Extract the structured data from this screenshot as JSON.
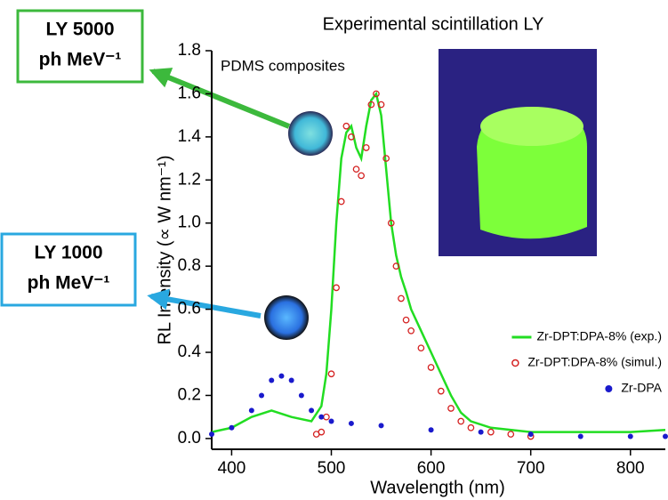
{
  "chart_data": {
    "type": "line",
    "title": "Experimental scintillation LY",
    "xlabel": "Wavelength (nm)",
    "ylabel": "RL Intensity (∝ W nm⁻¹)",
    "inset_label": "PDMS composites",
    "annotations": [
      {
        "lines": [
          "LY 5000",
          "ph MeV⁻¹"
        ],
        "color": "#3cb93c"
      },
      {
        "lines": [
          "LY 1000",
          "ph MeV⁻¹"
        ],
        "color": "#29a8e0"
      }
    ],
    "xlim": [
      380,
      835
    ],
    "ylim": [
      -0.05,
      1.8
    ],
    "xticks": [
      400,
      500,
      600,
      700,
      800
    ],
    "yticks": [
      {
        "value": 0,
        "label": "0.0"
      },
      {
        "value": 0.2,
        "label": "0.2"
      },
      {
        "value": 0.4,
        "label": "0.4"
      },
      {
        "value": 0.6,
        "label": "0.6"
      },
      {
        "value": 0.8,
        "label": "0.8"
      },
      {
        "value": 1.0,
        "label": "1.0"
      },
      {
        "value": 1.2,
        "label": "1.2"
      },
      {
        "value": 1.4,
        "label": "1.4"
      },
      {
        "value": 1.6,
        "label": "1.6"
      },
      {
        "value": 1.8,
        "label": "1.8"
      }
    ],
    "legend": "lower right",
    "series": [
      {
        "name": "Zr-DPT:DPA-8% (exp.)",
        "color": "#22dd22",
        "marker": "line",
        "x": [
          380,
          400,
          420,
          440,
          460,
          480,
          490,
          495,
          500,
          505,
          510,
          515,
          520,
          525,
          530,
          535,
          540,
          545,
          550,
          555,
          560,
          565,
          570,
          575,
          580,
          590,
          600,
          610,
          620,
          630,
          640,
          660,
          700,
          750,
          800,
          835
        ],
        "values": [
          0.03,
          0.05,
          0.1,
          0.13,
          0.1,
          0.08,
          0.15,
          0.3,
          0.6,
          1.0,
          1.3,
          1.42,
          1.45,
          1.35,
          1.3,
          1.45,
          1.57,
          1.6,
          1.5,
          1.25,
          1.0,
          0.85,
          0.75,
          0.68,
          0.6,
          0.5,
          0.4,
          0.3,
          0.2,
          0.12,
          0.08,
          0.05,
          0.03,
          0.03,
          0.03,
          0.04
        ]
      },
      {
        "name": "Zr-DPT:DPA-8% (simul.)",
        "color": "#d42020",
        "marker": "open-circle",
        "x": [
          485,
          490,
          495,
          500,
          505,
          510,
          515,
          520,
          525,
          530,
          535,
          540,
          545,
          550,
          555,
          560,
          565,
          570,
          575,
          580,
          590,
          600,
          610,
          620,
          630,
          640,
          660,
          680,
          700
        ],
        "values": [
          0.02,
          0.03,
          0.1,
          0.3,
          0.7,
          1.1,
          1.45,
          1.4,
          1.25,
          1.22,
          1.35,
          1.55,
          1.6,
          1.55,
          1.3,
          1.0,
          0.8,
          0.65,
          0.55,
          0.5,
          0.42,
          0.33,
          0.22,
          0.14,
          0.08,
          0.05,
          0.03,
          0.02,
          0.01
        ]
      },
      {
        "name": "Zr-DPA",
        "color": "#1a1acc",
        "marker": "dot",
        "x": [
          380,
          400,
          420,
          430,
          440,
          450,
          460,
          470,
          480,
          490,
          500,
          520,
          550,
          600,
          650,
          700,
          750,
          800,
          835
        ],
        "values": [
          0.02,
          0.05,
          0.13,
          0.2,
          0.27,
          0.29,
          0.27,
          0.2,
          0.13,
          0.1,
          0.08,
          0.07,
          0.06,
          0.04,
          0.03,
          0.02,
          0.01,
          0.01,
          0.01
        ]
      }
    ]
  }
}
